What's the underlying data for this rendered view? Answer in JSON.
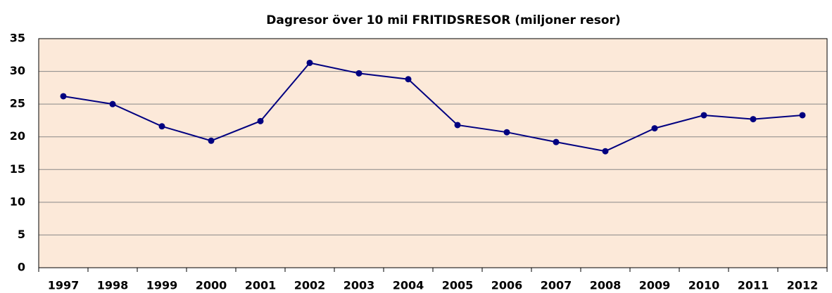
{
  "chart_data": {
    "type": "line",
    "title": "Dagresor över 10 mil FRITIDSRESOR (miljoner resor)",
    "categories": [
      "1997",
      "1998",
      "1999",
      "2000",
      "2001",
      "2002",
      "2003",
      "2004",
      "2005",
      "2006",
      "2007",
      "2008",
      "2009",
      "2010",
      "2011",
      "2012"
    ],
    "series": [
      {
        "color": "#000080",
        "values": [
          26.2,
          25.0,
          21.6,
          19.4,
          22.4,
          31.3,
          29.7,
          28.8,
          21.8,
          20.7,
          19.2,
          17.8,
          21.3,
          23.3,
          22.7,
          23.3
        ]
      }
    ],
    "ylim": [
      0,
      35
    ],
    "yticks": [
      0,
      5,
      10,
      15,
      20,
      25,
      30,
      35
    ],
    "grid": true
  }
}
